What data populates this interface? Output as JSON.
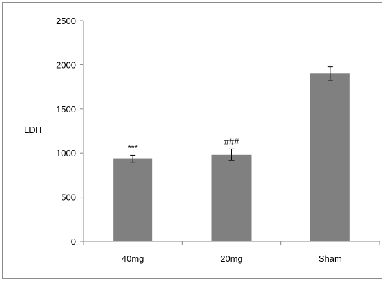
{
  "chart_data": {
    "type": "bar",
    "title": "",
    "xlabel": "",
    "ylabel": "LDH",
    "ylim": [
      0,
      2500
    ],
    "yticks": [
      0,
      500,
      1000,
      1500,
      2000,
      2500
    ],
    "grid": false,
    "categories": [
      "40mg",
      "20mg",
      "Sham"
    ],
    "values": [
      935,
      980,
      1900
    ],
    "errors": [
      40,
      65,
      75
    ],
    "annotations": [
      "***",
      "###",
      ""
    ],
    "bar_color": "#808080"
  }
}
